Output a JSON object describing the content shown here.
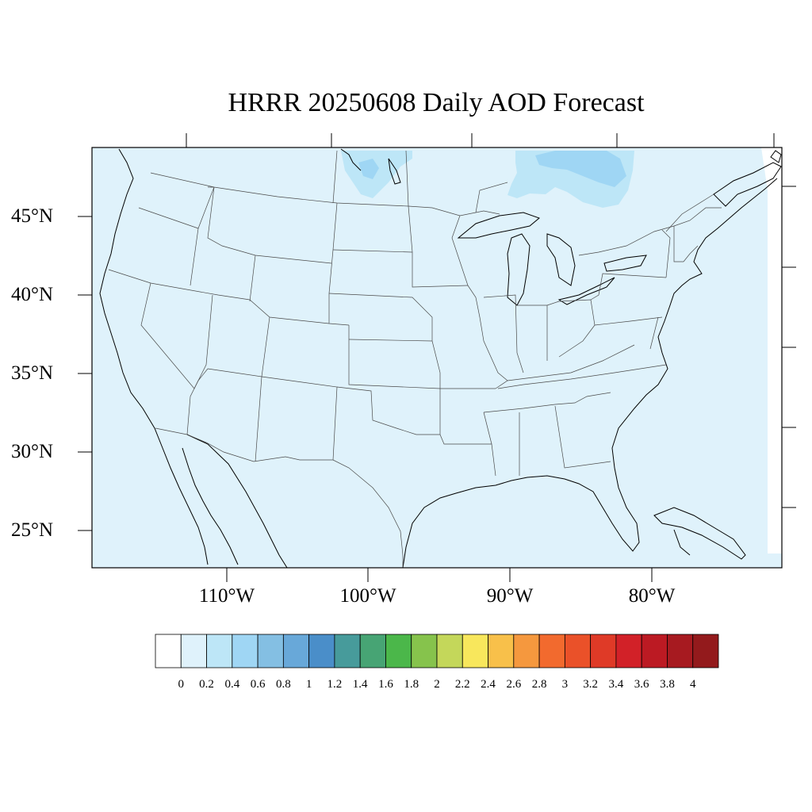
{
  "title": "HRRR 20250608 Daily AOD Forecast",
  "map": {
    "projection": "lambert-conformal",
    "region": "CONUS",
    "lat_labels": [
      "45°N",
      "40°N",
      "35°N",
      "30°N",
      "25°N"
    ],
    "lon_labels": [
      "110°W",
      "100°W",
      "90°W",
      "80°W"
    ],
    "background_fill": "#dff2fb",
    "features": [
      "state-boundaries",
      "coastlines",
      "great-lakes"
    ],
    "field": "AOD",
    "field_levels": [
      {
        "value": 0.2,
        "color": "#dff2fb",
        "description": "domain-wide background"
      },
      {
        "value": 0.4,
        "color": "#bde6f7",
        "description": "plume over Canada north of Great Lakes"
      },
      {
        "value": 0.6,
        "color": "#9fd6f4",
        "description": "core of plume north of Lake Superior"
      }
    ]
  },
  "colorbar": {
    "labels": [
      "0",
      "0.2",
      "0.4",
      "0.6",
      "0.8",
      "1",
      "1.2",
      "1.4",
      "1.6",
      "1.8",
      "2",
      "2.2",
      "2.4",
      "2.6",
      "2.8",
      "3",
      "3.2",
      "3.4",
      "3.6",
      "3.8",
      "4"
    ],
    "colors": [
      "#ffffff",
      "#dff2fb",
      "#bde6f7",
      "#9fd6f4",
      "#84bfe3",
      "#68a8d9",
      "#4a8ec9",
      "#479b9b",
      "#47a474",
      "#4bb74a",
      "#86c34c",
      "#c4d75a",
      "#f8e75c",
      "#f8c04a",
      "#f5983e",
      "#f26a2e",
      "#ea5129",
      "#df3a27",
      "#d22128",
      "#bc1a23",
      "#a71a20",
      "#931a1c"
    ]
  }
}
